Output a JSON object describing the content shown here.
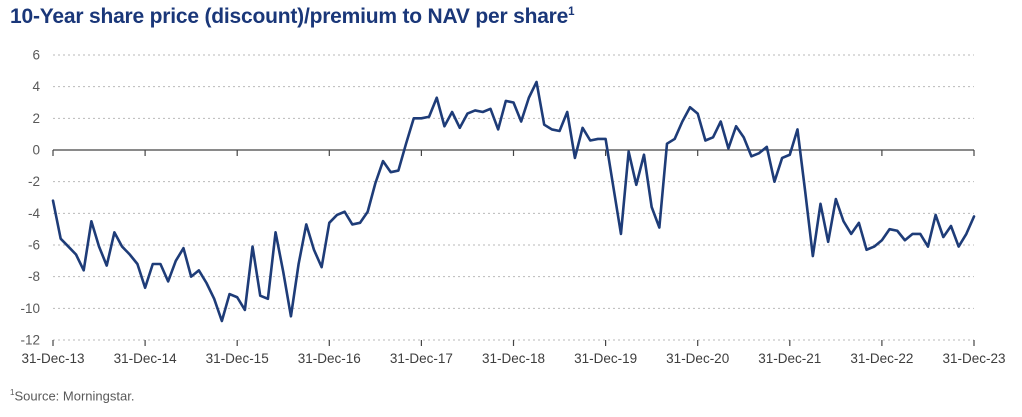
{
  "title": {
    "text": "10-Year share price (discount)/premium to NAV per share",
    "superscript": "1"
  },
  "footnote": {
    "superscript": "1",
    "text": "Source: Morningstar."
  },
  "chart_data": {
    "type": "line",
    "title": "10-Year share price (discount)/premium to NAV per share",
    "frequency": "monthly",
    "x_start": "31-Dec-13",
    "x_end": "31-Dec-23",
    "x_tick_labels": [
      "31-Dec-13",
      "31-Dec-14",
      "31-Dec-15",
      "31-Dec-16",
      "31-Dec-17",
      "31-Dec-18",
      "31-Dec-19",
      "31-Dec-20",
      "31-Dec-21",
      "31-Dec-22",
      "31-Dec-23"
    ],
    "y_ticks": [
      6,
      4,
      2,
      0,
      -2,
      -4,
      -6,
      -8,
      -10,
      -12
    ],
    "ylim": [
      -12,
      6
    ],
    "grid": "horizontal dashed",
    "zero_line": true,
    "legend": "none",
    "values": [
      -3.2,
      -5.6,
      -6.1,
      -6.6,
      -7.6,
      -4.5,
      -6.1,
      -7.3,
      -5.2,
      -6.1,
      -6.6,
      -7.2,
      -8.7,
      -7.2,
      -7.2,
      -8.3,
      -7.0,
      -6.2,
      -8.0,
      -7.6,
      -8.4,
      -9.4,
      -10.8,
      -9.1,
      -9.3,
      -10.1,
      -6.1,
      -9.2,
      -9.4,
      -5.2,
      -7.7,
      -10.5,
      -7.2,
      -4.7,
      -6.3,
      -7.4,
      -4.6,
      -4.1,
      -3.9,
      -4.7,
      -4.6,
      -3.9,
      -2.1,
      -0.7,
      -1.4,
      -1.3,
      0.4,
      2.0,
      2.0,
      2.1,
      3.3,
      1.5,
      2.4,
      1.4,
      2.3,
      2.5,
      2.4,
      2.6,
      1.3,
      3.1,
      3.0,
      1.8,
      3.3,
      4.3,
      1.6,
      1.3,
      1.2,
      2.4,
      -0.5,
      1.4,
      0.6,
      0.7,
      0.7,
      -2.3,
      -5.3,
      -0.1,
      -2.2,
      -0.3,
      -3.6,
      -4.9,
      0.4,
      0.7,
      1.8,
      2.7,
      2.3,
      0.6,
      0.8,
      1.8,
      0.1,
      1.5,
      0.8,
      -0.4,
      -0.2,
      0.2,
      -2.0,
      -0.5,
      -0.3,
      1.3,
      -2.6,
      -6.7,
      -3.4,
      -5.8,
      -3.1,
      -4.5,
      -5.3,
      -4.6,
      -6.3,
      -6.1,
      -5.7,
      -5.0,
      -5.1,
      -5.7,
      -5.3,
      -5.3,
      -6.1,
      -4.1,
      -5.5,
      -4.8,
      -6.1,
      -5.3,
      -4.2
    ],
    "colors": {
      "line": "#1e3c78",
      "title": "#1a3779",
      "axis_labels": "#595959",
      "x_labels": "#3d3d3d",
      "gridline": "#b9b9b9",
      "zero_line": "#454545"
    }
  }
}
